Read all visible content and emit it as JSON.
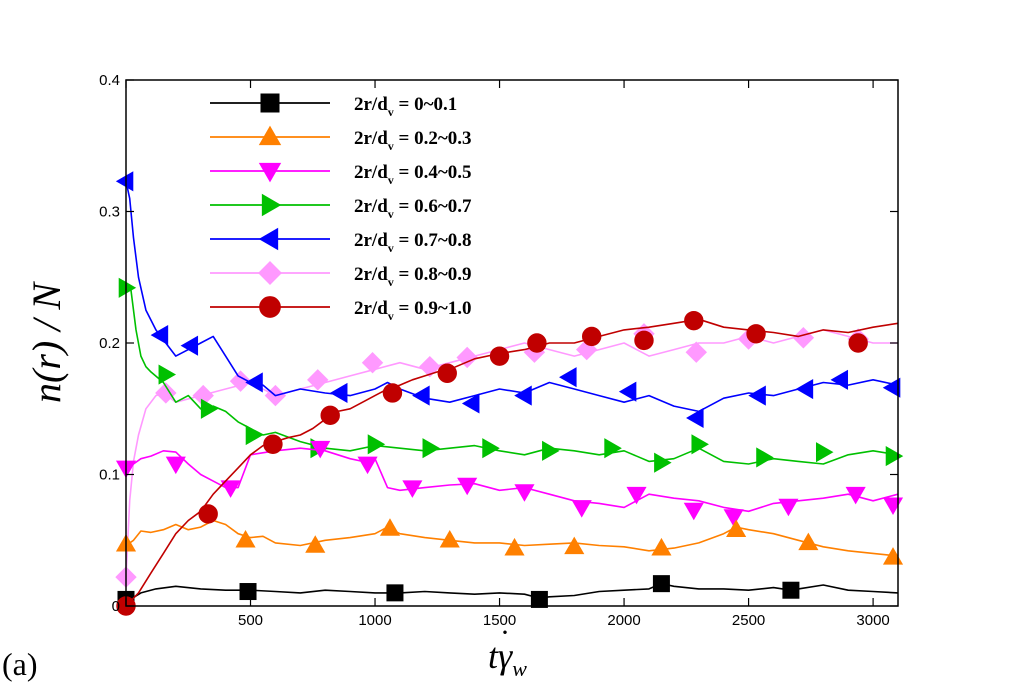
{
  "chart_data": {
    "type": "line",
    "panel_label": "(a)",
    "ylabel": "n(r) / N",
    "xlabel": "tγ̇w",
    "xlabel_parts": {
      "main": "t",
      "gamma": "γ",
      "sub": "w"
    },
    "xlim": [
      0,
      3100
    ],
    "ylim": [
      0,
      0.4
    ],
    "xticks": [
      0,
      500,
      1000,
      1500,
      2000,
      2500,
      3000
    ],
    "yticks": [
      0,
      0.1,
      0.2,
      0.3,
      0.4
    ],
    "xtick_labels": [
      "500",
      "1000",
      "1500",
      "2000",
      "2500",
      "3000"
    ],
    "ytick_labels": [
      "0",
      "0.1",
      "0.2",
      "0.3",
      "0.4"
    ],
    "legend_placement": "top-left",
    "series": [
      {
        "name": "2r/dv = 0~0.1",
        "legend": {
          "prefix": "2r/d",
          "sub": "v",
          "suffix": " = 0~0.1"
        },
        "color": "#000000",
        "marker": "square",
        "x": [
          0,
          60,
          120,
          200,
          300,
          400,
          500,
          600,
          700,
          800,
          900,
          1000,
          1100,
          1200,
          1300,
          1400,
          1500,
          1600,
          1660,
          1700,
          1800,
          1900,
          2000,
          2100,
          2150,
          2200,
          2300,
          2400,
          2500,
          2600,
          2670,
          2700,
          2800,
          2900,
          3000,
          3100
        ],
        "y": [
          0.003,
          0.01,
          0.013,
          0.015,
          0.013,
          0.012,
          0.012,
          0.011,
          0.01,
          0.012,
          0.011,
          0.01,
          0.01,
          0.011,
          0.01,
          0.009,
          0.01,
          0.009,
          0.006,
          0.007,
          0.008,
          0.011,
          0.012,
          0.013,
          0.017,
          0.015,
          0.013,
          0.013,
          0.012,
          0.014,
          0.012,
          0.013,
          0.016,
          0.012,
          0.011,
          0.01
        ],
        "markers_x": [
          0,
          490,
          1080,
          1660,
          2150,
          2670
        ],
        "markers_y": [
          0.005,
          0.011,
          0.01,
          0.005,
          0.017,
          0.012
        ]
      },
      {
        "name": "2r/dv = 0.2~0.3",
        "legend": {
          "prefix": "2r/d",
          "sub": "v",
          "suffix": " = 0.2~0.3"
        },
        "color": "#ff8000",
        "marker": "triangle-up",
        "x": [
          0,
          30,
          60,
          100,
          150,
          200,
          250,
          300,
          350,
          400,
          450,
          500,
          550,
          600,
          700,
          800,
          900,
          1000,
          1050,
          1100,
          1200,
          1300,
          1400,
          1500,
          1600,
          1700,
          1800,
          1900,
          2000,
          2100,
          2200,
          2300,
          2400,
          2450,
          2500,
          2600,
          2700,
          2800,
          2900,
          3000,
          3100
        ],
        "y": [
          0.046,
          0.05,
          0.057,
          0.056,
          0.058,
          0.062,
          0.058,
          0.06,
          0.065,
          0.062,
          0.055,
          0.052,
          0.053,
          0.048,
          0.046,
          0.05,
          0.052,
          0.055,
          0.06,
          0.055,
          0.052,
          0.05,
          0.048,
          0.048,
          0.046,
          0.047,
          0.048,
          0.046,
          0.045,
          0.042,
          0.044,
          0.048,
          0.055,
          0.06,
          0.058,
          0.055,
          0.05,
          0.045,
          0.042,
          0.04,
          0.038
        ],
        "markers_x": [
          0,
          480,
          760,
          1060,
          1300,
          1560,
          1800,
          2150,
          2450,
          2740,
          3080
        ],
        "markers_y": [
          0.047,
          0.05,
          0.046,
          0.059,
          0.05,
          0.044,
          0.045,
          0.044,
          0.058,
          0.048,
          0.037
        ]
      },
      {
        "name": "2r/dv = 0.4~0.5",
        "legend": {
          "prefix": "2r/d",
          "sub": "v",
          "suffix": " = 0.4~0.5"
        },
        "color": "#ff00ff",
        "marker": "triangle-down",
        "x": [
          0,
          30,
          60,
          100,
          150,
          200,
          250,
          300,
          350,
          400,
          450,
          500,
          600,
          700,
          800,
          900,
          950,
          1000,
          1050,
          1100,
          1200,
          1300,
          1400,
          1500,
          1600,
          1700,
          1800,
          1900,
          2000,
          2100,
          2200,
          2300,
          2400,
          2500,
          2600,
          2700,
          2800,
          2900,
          3000,
          3100
        ],
        "y": [
          0.105,
          0.108,
          0.112,
          0.114,
          0.118,
          0.117,
          0.108,
          0.1,
          0.095,
          0.09,
          0.09,
          0.115,
          0.118,
          0.12,
          0.118,
          0.112,
          0.11,
          0.112,
          0.09,
          0.088,
          0.09,
          0.092,
          0.093,
          0.088,
          0.09,
          0.085,
          0.08,
          0.078,
          0.075,
          0.085,
          0.082,
          0.08,
          0.075,
          0.072,
          0.078,
          0.08,
          0.082,
          0.085,
          0.08,
          0.085
        ],
        "markers_x": [
          0,
          200,
          420,
          780,
          970,
          1150,
          1370,
          1600,
          1830,
          2050,
          2280,
          2440,
          2660,
          2930,
          3080
        ],
        "markers_y": [
          0.105,
          0.108,
          0.09,
          0.12,
          0.108,
          0.09,
          0.092,
          0.087,
          0.075,
          0.085,
          0.073,
          0.068,
          0.076,
          0.085,
          0.077
        ]
      },
      {
        "name": "2r/dv = 0.6~0.7",
        "legend": {
          "prefix": "2r/d",
          "sub": "v",
          "suffix": " = 0.6~0.7"
        },
        "color": "#00c000",
        "marker": "triangle-right",
        "x": [
          0,
          20,
          40,
          60,
          80,
          100,
          150,
          200,
          250,
          300,
          350,
          400,
          450,
          500,
          550,
          600,
          700,
          800,
          900,
          1000,
          1100,
          1200,
          1300,
          1400,
          1500,
          1600,
          1700,
          1800,
          1900,
          2000,
          2100,
          2200,
          2300,
          2400,
          2500,
          2600,
          2700,
          2800,
          2900,
          3000,
          3100
        ],
        "y": [
          0.242,
          0.24,
          0.21,
          0.19,
          0.182,
          0.178,
          0.17,
          0.155,
          0.16,
          0.15,
          0.152,
          0.148,
          0.14,
          0.135,
          0.13,
          0.132,
          0.125,
          0.12,
          0.118,
          0.122,
          0.12,
          0.118,
          0.12,
          0.122,
          0.118,
          0.115,
          0.12,
          0.118,
          0.115,
          0.118,
          0.11,
          0.112,
          0.12,
          0.11,
          0.108,
          0.112,
          0.11,
          0.108,
          0.115,
          0.118,
          0.115
        ],
        "markers_x": [
          0,
          160,
          330,
          510,
          770,
          1000,
          1220,
          1460,
          1700,
          1950,
          2150,
          2300,
          2560,
          2800,
          3080
        ],
        "markers_y": [
          0.242,
          0.176,
          0.15,
          0.13,
          0.12,
          0.123,
          0.12,
          0.12,
          0.118,
          0.12,
          0.109,
          0.123,
          0.113,
          0.117,
          0.114
        ]
      },
      {
        "name": "2r/dv = 0.7~0.8",
        "legend": {
          "prefix": "2r/d",
          "sub": "v",
          "suffix": " = 0.7~0.8"
        },
        "color": "#0000ff",
        "marker": "triangle-left",
        "x": [
          0,
          15,
          30,
          50,
          80,
          120,
          160,
          200,
          250,
          300,
          350,
          400,
          450,
          500,
          550,
          600,
          700,
          800,
          900,
          1000,
          1050,
          1100,
          1200,
          1300,
          1400,
          1500,
          1600,
          1700,
          1800,
          1900,
          2000,
          2100,
          2200,
          2300,
          2400,
          2500,
          2600,
          2700,
          2800,
          2900,
          3000,
          3100
        ],
        "y": [
          0.323,
          0.31,
          0.28,
          0.25,
          0.225,
          0.21,
          0.2,
          0.19,
          0.195,
          0.2,
          0.205,
          0.19,
          0.175,
          0.17,
          0.168,
          0.16,
          0.165,
          0.162,
          0.16,
          0.165,
          0.17,
          0.165,
          0.158,
          0.155,
          0.16,
          0.165,
          0.162,
          0.17,
          0.165,
          0.16,
          0.155,
          0.16,
          0.152,
          0.148,
          0.158,
          0.162,
          0.16,
          0.165,
          0.17,
          0.168,
          0.172,
          0.168
        ],
        "markers_x": [
          0,
          140,
          260,
          520,
          860,
          1190,
          1390,
          1600,
          1780,
          2020,
          2290,
          2540,
          2730,
          2870,
          3080
        ],
        "markers_y": [
          0.323,
          0.206,
          0.198,
          0.17,
          0.162,
          0.16,
          0.154,
          0.16,
          0.174,
          0.163,
          0.143,
          0.16,
          0.165,
          0.172,
          0.166
        ]
      },
      {
        "name": "2r/dv = 0.8~0.9",
        "legend": {
          "prefix": "2r/d",
          "sub": "v",
          "suffix": " = 0.8~0.9"
        },
        "color": "#ff99ff",
        "marker": "diamond",
        "x": [
          0,
          15,
          30,
          50,
          80,
          120,
          150,
          200,
          300,
          400,
          500,
          600,
          700,
          800,
          900,
          1000,
          1100,
          1200,
          1300,
          1400,
          1500,
          1600,
          1700,
          1800,
          1900,
          2000,
          2100,
          2200,
          2300,
          2400,
          2500,
          2600,
          2700,
          2800,
          2900,
          3000,
          3100
        ],
        "y": [
          0.022,
          0.08,
          0.11,
          0.13,
          0.15,
          0.16,
          0.162,
          0.155,
          0.16,
          0.165,
          0.17,
          0.16,
          0.165,
          0.17,
          0.175,
          0.18,
          0.185,
          0.18,
          0.185,
          0.19,
          0.195,
          0.2,
          0.195,
          0.19,
          0.195,
          0.2,
          0.19,
          0.195,
          0.2,
          0.2,
          0.205,
          0.2,
          0.205,
          0.21,
          0.205,
          0.2,
          0.2
        ],
        "markers_x": [
          0,
          160,
          310,
          460,
          600,
          770,
          990,
          1220,
          1370,
          1640,
          1850,
          2080,
          2290,
          2500,
          2720,
          2940
        ],
        "markers_y": [
          0.022,
          0.162,
          0.16,
          0.171,
          0.16,
          0.172,
          0.185,
          0.182,
          0.189,
          0.193,
          0.195,
          0.207,
          0.193,
          0.203,
          0.204,
          0.203
        ]
      },
      {
        "name": "2r/dv = 0.9~1.0",
        "legend": {
          "prefix": "2r/d",
          "sub": "v",
          "suffix": " = 0.9~1.0"
        },
        "color": "#c00000",
        "marker": "circle",
        "x": [
          0,
          50,
          100,
          150,
          200,
          250,
          300,
          350,
          400,
          450,
          500,
          550,
          600,
          650,
          700,
          750,
          800,
          850,
          900,
          950,
          1000,
          1050,
          1100,
          1150,
          1200,
          1250,
          1300,
          1400,
          1500,
          1600,
          1700,
          1800,
          1900,
          2000,
          2100,
          2200,
          2300,
          2400,
          2500,
          2600,
          2700,
          2800,
          2900,
          3000,
          3100
        ],
        "y": [
          0.0,
          0.01,
          0.025,
          0.04,
          0.055,
          0.065,
          0.072,
          0.085,
          0.095,
          0.105,
          0.115,
          0.122,
          0.125,
          0.128,
          0.13,
          0.135,
          0.142,
          0.148,
          0.15,
          0.155,
          0.16,
          0.165,
          0.168,
          0.172,
          0.175,
          0.178,
          0.18,
          0.188,
          0.192,
          0.195,
          0.2,
          0.2,
          0.205,
          0.21,
          0.212,
          0.215,
          0.218,
          0.212,
          0.21,
          0.208,
          0.205,
          0.21,
          0.208,
          0.212,
          0.215
        ],
        "markers_x": [
          0,
          330,
          590,
          820,
          1070,
          1290,
          1500,
          1650,
          1870,
          2080,
          2280,
          2530,
          2940
        ],
        "markers_y": [
          0.0,
          0.07,
          0.123,
          0.145,
          0.162,
          0.177,
          0.19,
          0.2,
          0.205,
          0.202,
          0.217,
          0.207,
          0.2
        ]
      }
    ]
  }
}
